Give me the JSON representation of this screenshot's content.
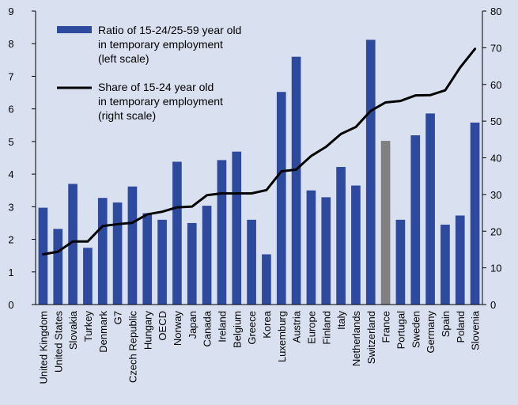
{
  "chart_data": {
    "type": "bar",
    "categories": [
      "United Kingdom",
      "United States",
      "Slovakia",
      "Turkey",
      "Denmark",
      "G7",
      "Czech Republic",
      "Hungary",
      "OECD",
      "Norway",
      "Japan",
      "Canada",
      "Ireland",
      "Belgium",
      "Greece",
      "Korea",
      "Luxemburg",
      "Austria",
      "Europe",
      "Finland",
      "Italy",
      "Netherlands",
      "Switzerland",
      "France",
      "Portugal",
      "Sweden",
      "Germany",
      "Spain",
      "Poland",
      "Slovenia"
    ],
    "series": [
      {
        "name": "Ratio of 15-24/25-59 year old in temporary employment (left scale)",
        "legend_lines": [
          "Ratio of 15-24/25-59 year old",
          "in temporary employment",
          "(left scale)"
        ],
        "type": "bar",
        "axis": "left",
        "color": "#2e4a9e",
        "values": [
          2.97,
          2.32,
          3.7,
          1.74,
          3.27,
          3.13,
          3.62,
          2.8,
          2.6,
          4.38,
          2.5,
          3.03,
          4.43,
          4.69,
          2.6,
          1.54,
          6.52,
          7.6,
          3.5,
          3.29,
          4.22,
          3.65,
          8.12,
          5.02,
          2.6,
          5.19,
          5.86,
          2.45,
          2.73,
          5.58
        ]
      },
      {
        "name": "Share of 15-24 year old in temporary employment (right scale)",
        "legend_lines": [
          "Share of 15-24 year old",
          "in temporary employment",
          "(right scale)"
        ],
        "type": "line",
        "axis": "right",
        "color": "#000000",
        "values": [
          13.7,
          14.4,
          17.2,
          17.2,
          21.4,
          21.9,
          22.3,
          24.6,
          25.3,
          26.5,
          26.7,
          29.8,
          30.3,
          30.3,
          30.3,
          31.2,
          36.3,
          36.8,
          40.5,
          43.0,
          46.5,
          48.4,
          52.8,
          55.1,
          55.5,
          57.0,
          57.1,
          58.4,
          64.6,
          69.7
        ]
      }
    ],
    "highlight": {
      "category": "France",
      "color": "#808080"
    },
    "y_left": {
      "min": 0,
      "max": 9,
      "ticks": [
        "0",
        "1",
        "2",
        "3",
        "4",
        "5",
        "6",
        "7",
        "8",
        "9"
      ]
    },
    "y_right": {
      "min": 0,
      "max": 80,
      "ticks": [
        "0",
        "10",
        "20",
        "30",
        "40",
        "50",
        "60",
        "70",
        "80"
      ]
    },
    "grid": false,
    "legend_position": "top-left",
    "title": "",
    "xlabel": "",
    "ylabel": ""
  }
}
